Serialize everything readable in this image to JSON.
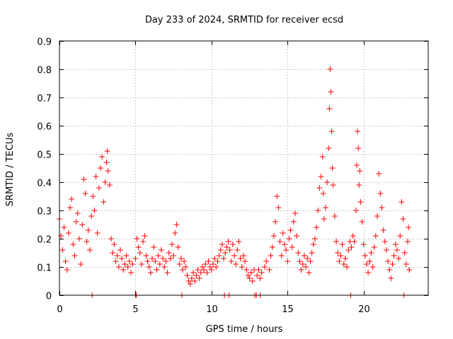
{
  "chart_data": {
    "type": "scatter",
    "title": "Day 233 of 2024, SRMTID for receiver ecsd",
    "xlabel": "GPS time / hours",
    "ylabel": "SRMTID / TECUs",
    "xlim": [
      0,
      24.25
    ],
    "ylim": [
      0,
      0.9
    ],
    "xticks": [
      0,
      5,
      10,
      15,
      20
    ],
    "xtick_labels": [
      "0",
      "5",
      "10",
      "15",
      "20"
    ],
    "yticks": [
      0,
      0.1,
      0.2,
      0.3,
      0.4,
      0.5,
      0.6,
      0.7,
      0.8,
      0.9
    ],
    "ytick_labels": [
      "0",
      "0.1",
      "0.2",
      "0.3",
      "0.4",
      "0.5",
      "0.6",
      "0.7",
      "0.8",
      "0.9"
    ],
    "grid": true,
    "marker": "+",
    "color": "#ff0000",
    "series": [
      {
        "name": "SRMTID",
        "points": [
          [
            0.0,
            0.27
          ],
          [
            0.1,
            0.21
          ],
          [
            0.2,
            0.16
          ],
          [
            0.3,
            0.24
          ],
          [
            0.4,
            0.12
          ],
          [
            0.5,
            0.09
          ],
          [
            0.6,
            0.22
          ],
          [
            0.7,
            0.31
          ],
          [
            0.8,
            0.34
          ],
          [
            0.9,
            0.18
          ],
          [
            1.0,
            0.14
          ],
          [
            1.1,
            0.26
          ],
          [
            1.2,
            0.29
          ],
          [
            1.3,
            0.2
          ],
          [
            1.4,
            0.11
          ],
          [
            1.5,
            0.25
          ],
          [
            1.6,
            0.41
          ],
          [
            1.7,
            0.36
          ],
          [
            1.8,
            0.19
          ],
          [
            1.9,
            0.23
          ],
          [
            2.0,
            0.16
          ],
          [
            2.1,
            0.28
          ],
          [
            2.2,
            0.35
          ],
          [
            2.3,
            0.3
          ],
          [
            2.4,
            0.42
          ],
          [
            2.5,
            0.22
          ],
          [
            2.6,
            0.38
          ],
          [
            2.7,
            0.45
          ],
          [
            2.8,
            0.49
          ],
          [
            2.9,
            0.33
          ],
          [
            3.0,
            0.4
          ],
          [
            3.1,
            0.47
          ],
          [
            3.15,
            0.51
          ],
          [
            3.2,
            0.44
          ],
          [
            3.3,
            0.39
          ],
          [
            3.4,
            0.2
          ],
          [
            3.5,
            0.15
          ],
          [
            3.6,
            0.18
          ],
          [
            3.7,
            0.12
          ],
          [
            3.8,
            0.14
          ],
          [
            3.9,
            0.1
          ],
          [
            4.0,
            0.16
          ],
          [
            4.1,
            0.13
          ],
          [
            4.2,
            0.09
          ],
          [
            4.3,
            0.11
          ],
          [
            4.4,
            0.14
          ],
          [
            4.5,
            0.1
          ],
          [
            4.6,
            0.12
          ],
          [
            4.7,
            0.08
          ],
          [
            4.8,
            0.11
          ],
          [
            5.0,
            0.13
          ],
          [
            5.1,
            0.2
          ],
          [
            5.2,
            0.17
          ],
          [
            5.3,
            0.15
          ],
          [
            5.4,
            0.11
          ],
          [
            5.5,
            0.19
          ],
          [
            5.6,
            0.21
          ],
          [
            5.7,
            0.14
          ],
          [
            5.8,
            0.12
          ],
          [
            5.9,
            0.1
          ],
          [
            6.0,
            0.08
          ],
          [
            6.1,
            0.13
          ],
          [
            6.2,
            0.17
          ],
          [
            6.3,
            0.12
          ],
          [
            6.4,
            0.09
          ],
          [
            6.5,
            0.14
          ],
          [
            6.6,
            0.11
          ],
          [
            6.7,
            0.16
          ],
          [
            6.8,
            0.13
          ],
          [
            6.9,
            0.1
          ],
          [
            7.0,
            0.12
          ],
          [
            7.1,
            0.08
          ],
          [
            7.2,
            0.15
          ],
          [
            7.3,
            0.13
          ],
          [
            7.4,
            0.18
          ],
          [
            7.5,
            0.14
          ],
          [
            7.6,
            0.22
          ],
          [
            7.7,
            0.25
          ],
          [
            7.8,
            0.17
          ],
          [
            7.9,
            0.11
          ],
          [
            8.0,
            0.13
          ],
          [
            8.1,
            0.09
          ],
          [
            8.2,
            0.12
          ],
          [
            8.3,
            0.1
          ],
          [
            8.4,
            0.07
          ],
          [
            8.5,
            0.05
          ],
          [
            8.6,
            0.04
          ],
          [
            8.7,
            0.06
          ],
          [
            8.8,
            0.08
          ],
          [
            8.9,
            0.05
          ],
          [
            9.0,
            0.07
          ],
          [
            9.1,
            0.09
          ],
          [
            9.2,
            0.06
          ],
          [
            9.3,
            0.08
          ],
          [
            9.4,
            0.1
          ],
          [
            9.5,
            0.09
          ],
          [
            9.6,
            0.11
          ],
          [
            9.7,
            0.08
          ],
          [
            9.8,
            0.12
          ],
          [
            9.9,
            0.1
          ],
          [
            10.0,
            0.09
          ],
          [
            10.1,
            0.11
          ],
          [
            10.2,
            0.13
          ],
          [
            10.3,
            0.1
          ],
          [
            10.4,
            0.12
          ],
          [
            10.5,
            0.14
          ],
          [
            10.6,
            0.16
          ],
          [
            10.7,
            0.18
          ],
          [
            10.8,
            0.13
          ],
          [
            10.9,
            0.15
          ],
          [
            11.0,
            0.17
          ],
          [
            11.1,
            0.19
          ],
          [
            11.2,
            0.16
          ],
          [
            11.3,
            0.12
          ],
          [
            11.4,
            0.18
          ],
          [
            11.5,
            0.14
          ],
          [
            11.6,
            0.11
          ],
          [
            11.7,
            0.16
          ],
          [
            11.8,
            0.19
          ],
          [
            11.9,
            0.13
          ],
          [
            12.0,
            0.1
          ],
          [
            12.1,
            0.14
          ],
          [
            12.2,
            0.12
          ],
          [
            12.3,
            0.09
          ],
          [
            12.4,
            0.07
          ],
          [
            12.5,
            0.06
          ],
          [
            12.6,
            0.08
          ],
          [
            12.7,
            0.05
          ],
          [
            12.8,
            0.09
          ],
          [
            13.0,
            0.07
          ],
          [
            13.1,
            0.09
          ],
          [
            13.2,
            0.06
          ],
          [
            13.3,
            0.08
          ],
          [
            13.5,
            0.1
          ],
          [
            13.6,
            0.12
          ],
          [
            13.8,
            0.09
          ],
          [
            13.9,
            0.14
          ],
          [
            14.0,
            0.17
          ],
          [
            14.1,
            0.21
          ],
          [
            14.2,
            0.26
          ],
          [
            14.3,
            0.35
          ],
          [
            14.4,
            0.31
          ],
          [
            14.5,
            0.19
          ],
          [
            14.6,
            0.14
          ],
          [
            14.7,
            0.22
          ],
          [
            14.8,
            0.18
          ],
          [
            14.9,
            0.16
          ],
          [
            15.0,
            0.12
          ],
          [
            15.1,
            0.2
          ],
          [
            15.2,
            0.23
          ],
          [
            15.3,
            0.17
          ],
          [
            15.4,
            0.26
          ],
          [
            15.5,
            0.29
          ],
          [
            15.6,
            0.21
          ],
          [
            15.7,
            0.15
          ],
          [
            15.8,
            0.12
          ],
          [
            15.9,
            0.09
          ],
          [
            16.0,
            0.11
          ],
          [
            16.1,
            0.14
          ],
          [
            16.2,
            0.1
          ],
          [
            16.3,
            0.13
          ],
          [
            16.4,
            0.08
          ],
          [
            16.5,
            0.12
          ],
          [
            16.6,
            0.15
          ],
          [
            16.7,
            0.18
          ],
          [
            16.8,
            0.2
          ],
          [
            16.9,
            0.24
          ],
          [
            17.0,
            0.3
          ],
          [
            17.1,
            0.38
          ],
          [
            17.2,
            0.42
          ],
          [
            17.3,
            0.49
          ],
          [
            17.35,
            0.36
          ],
          [
            17.4,
            0.27
          ],
          [
            17.5,
            0.31
          ],
          [
            17.6,
            0.4
          ],
          [
            17.7,
            0.52
          ],
          [
            17.75,
            0.66
          ],
          [
            17.8,
            0.8
          ],
          [
            17.85,
            0.72
          ],
          [
            17.9,
            0.58
          ],
          [
            17.95,
            0.45
          ],
          [
            18.0,
            0.39
          ],
          [
            18.1,
            0.28
          ],
          [
            18.2,
            0.19
          ],
          [
            18.3,
            0.15
          ],
          [
            18.4,
            0.12
          ],
          [
            18.5,
            0.14
          ],
          [
            18.6,
            0.18
          ],
          [
            18.7,
            0.11
          ],
          [
            18.8,
            0.13
          ],
          [
            18.9,
            0.1
          ],
          [
            19.0,
            0.16
          ],
          [
            19.1,
            0.19
          ],
          [
            19.2,
            0.17
          ],
          [
            19.3,
            0.21
          ],
          [
            19.4,
            0.19
          ],
          [
            19.5,
            0.3
          ],
          [
            19.55,
            0.46
          ],
          [
            19.6,
            0.58
          ],
          [
            19.65,
            0.52
          ],
          [
            19.7,
            0.39
          ],
          [
            19.75,
            0.44
          ],
          [
            19.8,
            0.33
          ],
          [
            19.9,
            0.26
          ],
          [
            20.0,
            0.18
          ],
          [
            20.1,
            0.14
          ],
          [
            20.2,
            0.11
          ],
          [
            20.3,
            0.08
          ],
          [
            20.4,
            0.12
          ],
          [
            20.5,
            0.15
          ],
          [
            20.6,
            0.1
          ],
          [
            20.7,
            0.17
          ],
          [
            20.8,
            0.21
          ],
          [
            20.9,
            0.28
          ],
          [
            21.0,
            0.43
          ],
          [
            21.1,
            0.36
          ],
          [
            21.2,
            0.31
          ],
          [
            21.3,
            0.23
          ],
          [
            21.4,
            0.19
          ],
          [
            21.5,
            0.16
          ],
          [
            21.6,
            0.12
          ],
          [
            21.7,
            0.09
          ],
          [
            21.8,
            0.06
          ],
          [
            21.9,
            0.11
          ],
          [
            22.0,
            0.14
          ],
          [
            22.1,
            0.18
          ],
          [
            22.2,
            0.16
          ],
          [
            22.3,
            0.13
          ],
          [
            22.4,
            0.21
          ],
          [
            22.5,
            0.33
          ],
          [
            22.6,
            0.27
          ],
          [
            22.7,
            0.15
          ],
          [
            22.8,
            0.11
          ],
          [
            22.9,
            0.19
          ],
          [
            22.95,
            0.24
          ],
          [
            23.0,
            0.09
          ],
          [
            2.15,
            0.0
          ],
          [
            5.0,
            0.0
          ],
          [
            5.05,
            0.0
          ],
          [
            8.05,
            0.0
          ],
          [
            10.85,
            0.0
          ],
          [
            11.15,
            0.0
          ],
          [
            12.85,
            0.0
          ],
          [
            12.95,
            0.0
          ],
          [
            13.2,
            0.0
          ],
          [
            19.15,
            0.0
          ],
          [
            22.65,
            0.0
          ]
        ]
      }
    ]
  }
}
